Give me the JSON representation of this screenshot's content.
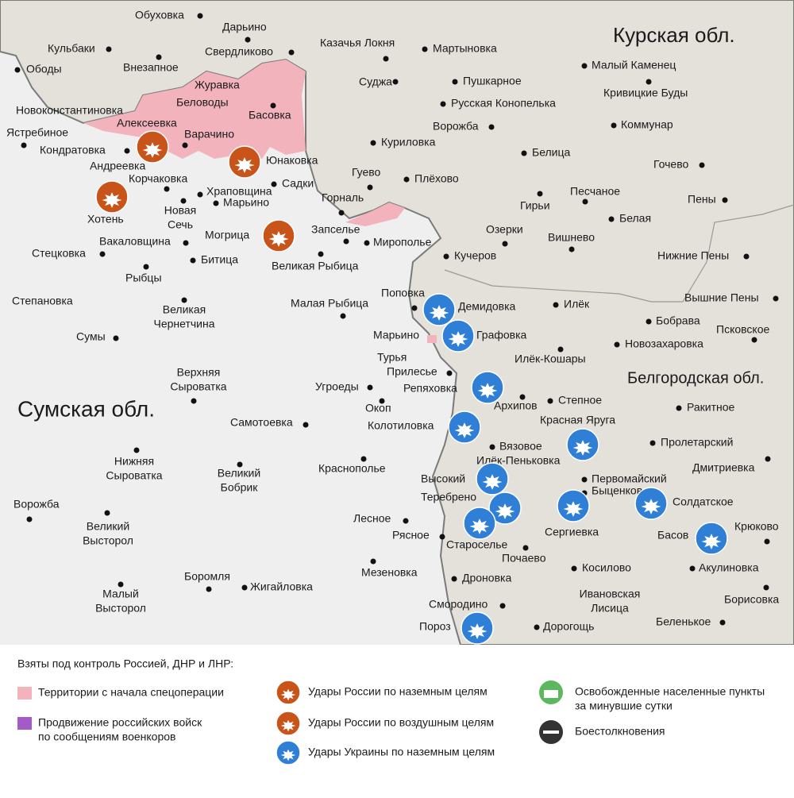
{
  "map": {
    "regions": [
      "Курская обл.",
      "Белгородская обл.",
      "Сумская обл."
    ],
    "places": [
      "Обуховка",
      "Дарьино",
      "Кульбаки",
      "Внезапное",
      "Свердликово",
      "Казачья Локня",
      "Мартыновка",
      "Ободы",
      "Журавка",
      "Беловоды",
      "Суджа",
      "Пушкарное",
      "Малый Каменец",
      "Кривицкие Буды",
      "Новоконстантиновка",
      "Алексеевка",
      "Басовка",
      "Русская Конопелька",
      "Ястребиное",
      "Варачино",
      "Ворожба",
      "Коммунар",
      "Кондратовка",
      "Андреевка",
      "Куриловка",
      "Белица",
      "Юнаковка",
      "Гочево",
      "Корчаковка",
      "Гуево",
      "Плёхово",
      "Садки",
      "Храповщина",
      "Хотень",
      [
        "Новая",
        "Сечь"
      ],
      "Марьино",
      "Горналь",
      "Гирьи",
      "Песчаное",
      "Пены",
      "Белая",
      "Вакаловщина",
      "Запселье",
      "Мирополье",
      "Озерки",
      "Вишнево",
      "Могрица",
      "Стецковка",
      "Битица",
      "Великая Рыбица",
      "Кучеров",
      "Нижние Пены",
      "Рыбцы",
      "Степановка",
      [
        "Великая",
        "Чернетчина"
      ],
      "Малая Рыбица",
      "Поповка",
      "Демидовка",
      "Илёк",
      "Вышние Пены",
      "Бобрава",
      "Псковское",
      "Сумы",
      "Марьино",
      "Графовка",
      "Новозахаровка",
      "Турья",
      "Илёк-Кошары",
      "Прилесье",
      [
        "Верхняя",
        "Сыроватка"
      ],
      "Репяховка",
      "Угроеды",
      "Архипов",
      "Степное",
      "Окоп",
      "Ракитное",
      "Красная Яруга",
      "Самотоевка",
      "Колотиловка",
      "Вязовое",
      "Пролетарский",
      [
        "Нижняя",
        "Сыроватка"
      ],
      "Илёк-Пеньковка",
      "Краснополье",
      [
        "Великий",
        "Бобрик"
      ],
      "Дмитриевка",
      "Высокий",
      "Первомайский",
      "Быценков",
      "Солдатское",
      "Ворожба",
      "Теребрено",
      "Лесное",
      [
        "Великий",
        "Высторол"
      ],
      "Басов",
      "Крюково",
      "Сергиевка",
      "Рясное",
      "Староселье",
      "Почаево",
      "Мезеновка",
      "Дроновка",
      "Косилово",
      "Акулиновка",
      "Боромля",
      "Жигайловка",
      [
        "Малый",
        "Высторол"
      ],
      [
        "Ивановская",
        "Лисица"
      ],
      "Борисовка",
      "Смородино",
      "Беленькое",
      "Пороз",
      "Дорогощь"
    ]
  },
  "legend": {
    "title": "Взяты под контроль Россией, ДНР и ЛНР:",
    "items": [
      [
        "Территории с начала спецоперации"
      ],
      [
        "Продвижение российских войск",
        "по сообщениям военкоров"
      ],
      [
        "Удары России по наземным целям"
      ],
      [
        "Удары России по воздушным целям"
      ],
      [
        "Удары Украины по наземным целям"
      ],
      [
        "Освобожденные населенные пункты",
        "за минувшие сутки"
      ],
      [
        "Боестолкновения"
      ]
    ]
  }
}
